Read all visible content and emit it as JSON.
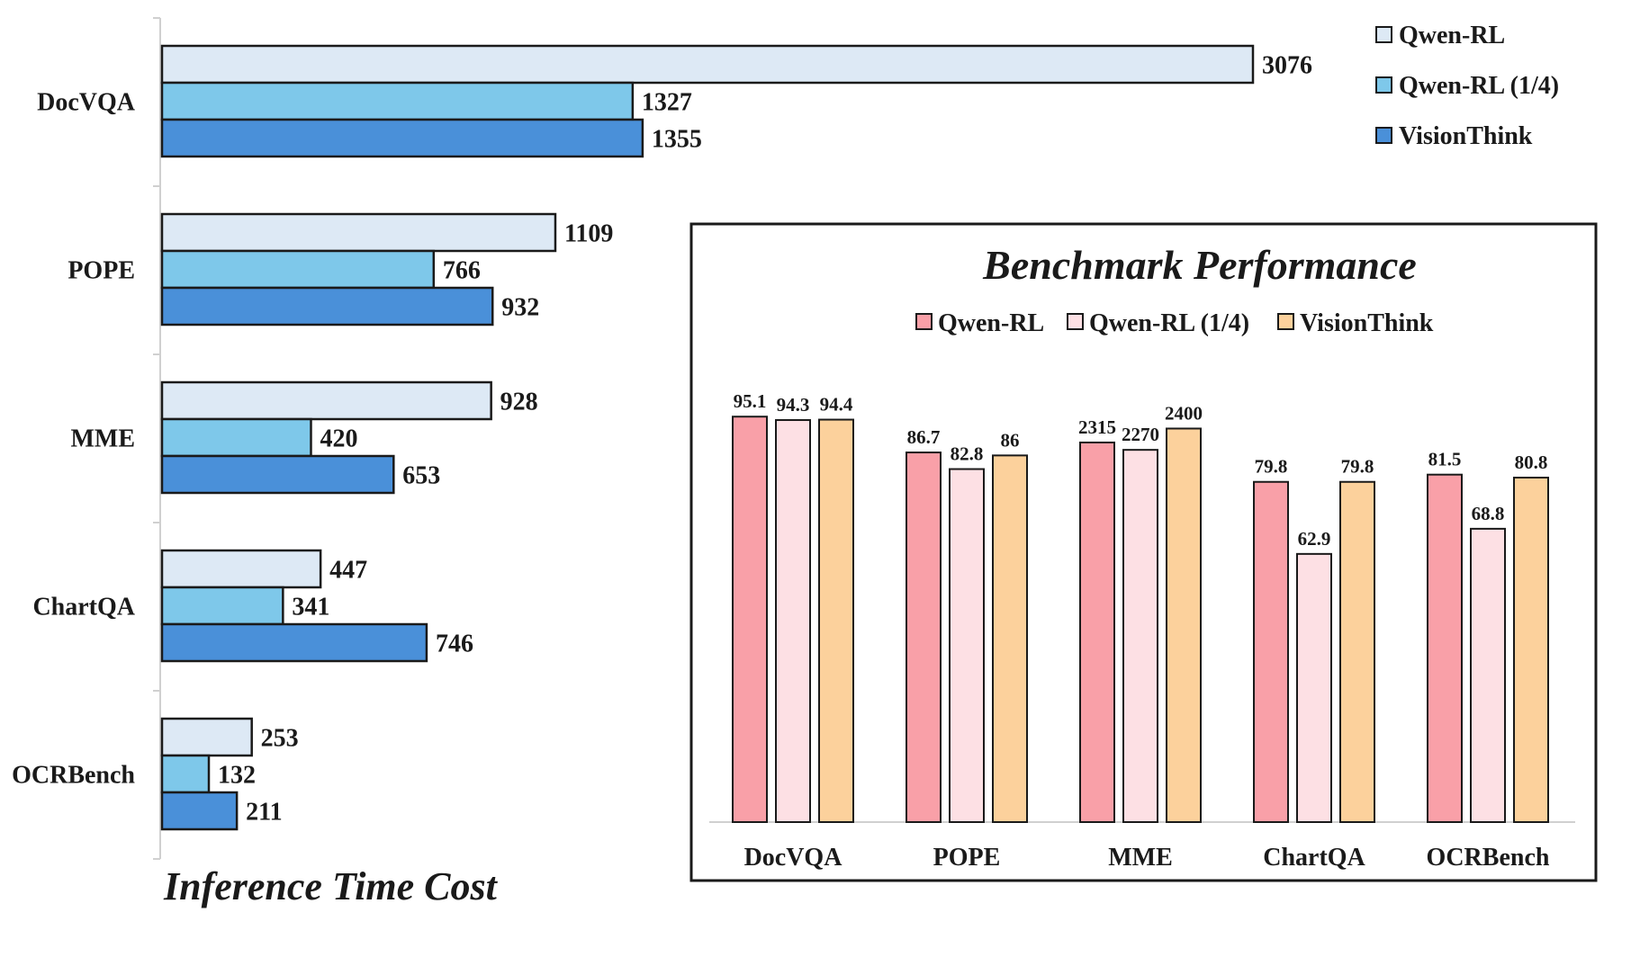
{
  "colors": {
    "h_series": [
      "#dde9f5",
      "#7ec8ea",
      "#4a90d9"
    ],
    "v_series": [
      "#f9a0a8",
      "#fde0e4",
      "#fcd19c"
    ],
    "outline": "#1a1a1a",
    "axis": "#d0d0d0"
  },
  "chart_data": [
    {
      "type": "bar",
      "orientation": "horizontal",
      "title": "Inference Time Cost",
      "categories": [
        "DocVQA",
        "POPE",
        "MME",
        "ChartQA",
        "OCRBench"
      ],
      "series": [
        {
          "name": "Qwen-RL",
          "values": [
            3076,
            1109,
            928,
            447,
            253
          ]
        },
        {
          "name": "Qwen-RL (1/4)",
          "values": [
            1327,
            766,
            420,
            341,
            132
          ]
        },
        {
          "name": "VisionThink",
          "values": [
            1355,
            932,
            653,
            746,
            211
          ]
        }
      ],
      "xlim": [
        0,
        3076
      ],
      "legend": "top-right"
    },
    {
      "type": "bar",
      "orientation": "vertical",
      "title": "Benchmark Performance",
      "categories": [
        "DocVQA",
        "POPE",
        "MME",
        "ChartQA",
        "OCRBench"
      ],
      "series": [
        {
          "name": "Qwen-RL",
          "values": [
            95.1,
            86.7,
            2315,
            79.8,
            81.5
          ],
          "labels": [
            "95.1",
            "86.7",
            "2315",
            "79.8",
            "81.5"
          ]
        },
        {
          "name": "Qwen-RL (1/4)",
          "values": [
            94.3,
            82.8,
            2270,
            62.9,
            68.8
          ],
          "labels": [
            "94.3",
            "82.8",
            "2270",
            "62.9",
            "68.8"
          ]
        },
        {
          "name": "VisionThink",
          "values": [
            94.4,
            86,
            2400,
            79.8,
            80.8
          ],
          "labels": [
            "94.4",
            "86",
            "2400",
            "79.8",
            "80.8"
          ]
        }
      ],
      "per_category_scale": {
        "DocVQA": [
          0,
          100
        ],
        "POPE": [
          0,
          100
        ],
        "MME": [
          0,
          2600
        ],
        "ChartQA": [
          0,
          100
        ],
        "OCRBench": [
          0,
          100
        ]
      },
      "legend": "top"
    }
  ]
}
